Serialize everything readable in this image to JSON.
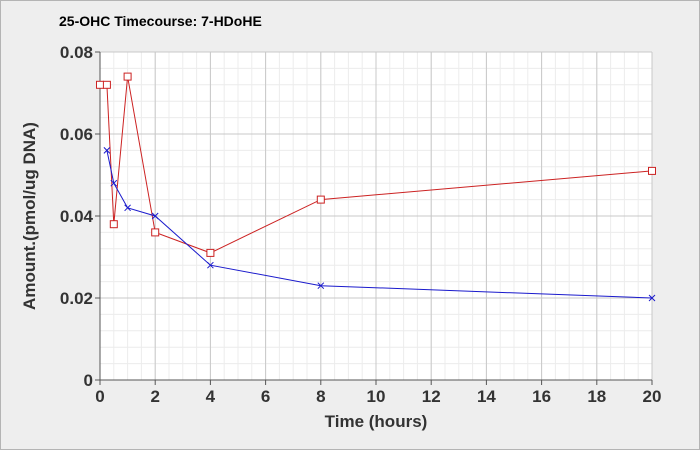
{
  "chart_data": {
    "type": "line",
    "title": "25-OHC Timecourse: 7-HDoHE",
    "xlabel": "Time (hours)",
    "ylabel": "Amount.(pmol/ug DNA)",
    "xlim": [
      0,
      20
    ],
    "ylim": [
      0,
      0.08
    ],
    "x_ticks": [
      "0",
      "2",
      "4",
      "6",
      "8",
      "10",
      "12",
      "14",
      "16",
      "18",
      "20"
    ],
    "y_ticks": [
      "0",
      "0.02",
      "0.04",
      "0.06",
      "0.08"
    ],
    "grid": true,
    "legend": "none",
    "series": [
      {
        "marker": "square",
        "color": "#cc2222",
        "x": [
          0,
          0.25,
          0.5,
          1,
          2,
          4,
          8,
          20
        ],
        "values": [
          0.072,
          0.072,
          0.038,
          0.074,
          0.036,
          0.031,
          0.044,
          0.051
        ]
      },
      {
        "marker": "x",
        "color": "#1a1acc",
        "x": [
          0.25,
          0.5,
          1,
          2,
          4,
          8,
          20
        ],
        "values": [
          0.056,
          0.048,
          0.042,
          0.04,
          0.028,
          0.023,
          0.02
        ]
      }
    ]
  }
}
